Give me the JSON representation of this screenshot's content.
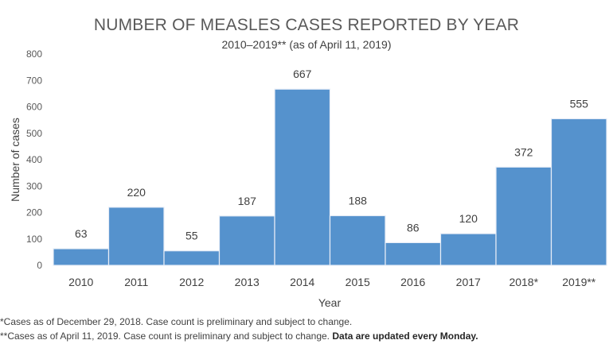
{
  "chart_data": {
    "type": "bar",
    "title": "NUMBER OF MEASLES CASES REPORTED BY YEAR",
    "subtitle": "2010–2019** (as of April 11, 2019)",
    "xlabel": "Year",
    "ylabel": "Number of cases",
    "ylim": [
      0,
      800
    ],
    "yticks": [
      0,
      100,
      200,
      300,
      400,
      500,
      600,
      700,
      800
    ],
    "grid": false,
    "legend": "none",
    "bar_color": "#5592cd",
    "categories": [
      "2010",
      "2011",
      "2012",
      "2013",
      "2014",
      "2015",
      "2016",
      "2017",
      "2018*",
      "2019**"
    ],
    "values": [
      63,
      220,
      55,
      187,
      667,
      188,
      86,
      120,
      372,
      555
    ],
    "data_labels": [
      "63",
      "220",
      "55",
      "187",
      "667",
      "188",
      "86",
      "120",
      "372",
      "555"
    ]
  },
  "footnotes": {
    "line1": "*Cases as of December 29, 2018. Case count is preliminary and subject to change.",
    "line2_normal": "**Cases as of April 11, 2019. Case count is preliminary and subject to change. ",
    "line2_bold": "Data are updated every Monday."
  }
}
